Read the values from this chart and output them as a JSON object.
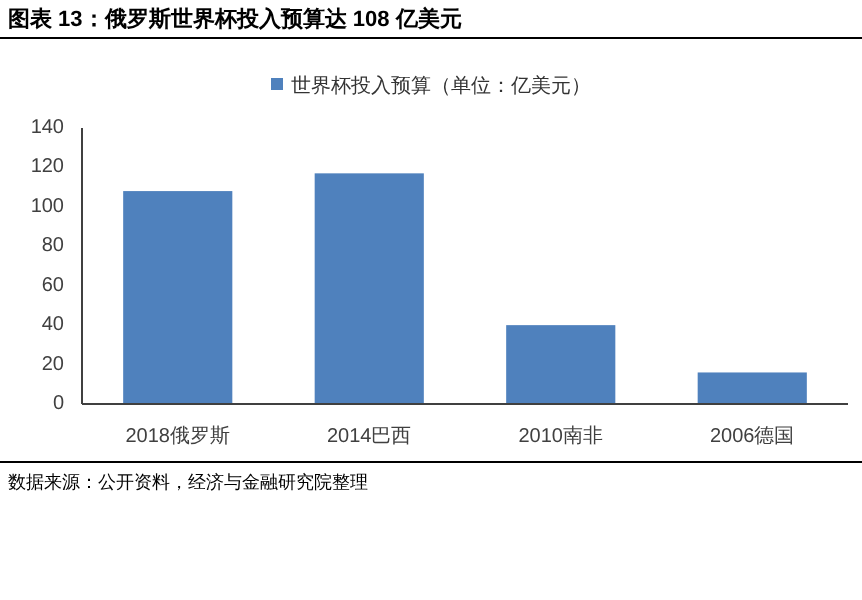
{
  "chart_data": {
    "type": "bar",
    "title": "图表 13：俄罗斯世界杯投入预算达 108 亿美元",
    "categories": [
      "2018俄罗斯",
      "2014巴西",
      "2010南非",
      "2006德国"
    ],
    "series": [
      {
        "name": "世界杯投入预算（单位：亿美元）",
        "color": "#4f81bd",
        "values": [
          108,
          117,
          40,
          16
        ]
      }
    ],
    "ylim": [
      0,
      140
    ],
    "yticks": [
      0,
      20,
      40,
      60,
      80,
      100,
      120,
      140
    ],
    "grid": false,
    "legend": "top",
    "annotations": [
      "数据来源：公开资料，经济与金融研究院整理"
    ]
  }
}
